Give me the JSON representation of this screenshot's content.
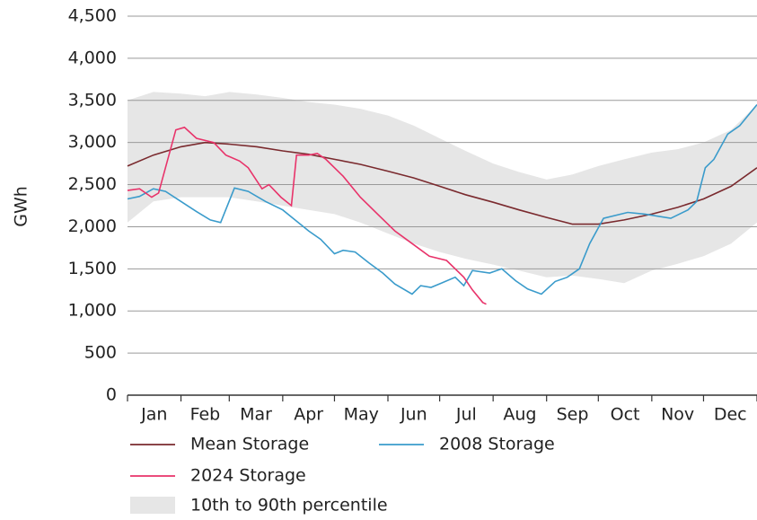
{
  "chart_data": {
    "type": "line",
    "y_label": "GWh",
    "categories": [
      "Jan",
      "Feb",
      "Mar",
      "Apr",
      "May",
      "Jun",
      "Jul",
      "Aug",
      "Sep",
      "Oct",
      "Nov",
      "Dec"
    ],
    "xlim": [
      0,
      365
    ],
    "xticks": [
      0,
      31,
      59,
      90,
      120,
      151,
      181,
      212,
      243,
      273,
      304,
      334,
      365
    ],
    "ylim": [
      0,
      4500
    ],
    "yticks": [
      0,
      {
        "value": 500,
        "label": "500"
      },
      {
        "value": 1000,
        "label": "1,000"
      },
      {
        "value": 1500,
        "label": "1,500"
      },
      {
        "value": 2000,
        "label": "2,000"
      },
      {
        "value": 2500,
        "label": "2,500"
      },
      {
        "value": 3000,
        "label": "3,000"
      },
      {
        "value": 3500,
        "label": "3,500"
      },
      {
        "value": 4000,
        "label": "4,000"
      },
      {
        "value": 4500,
        "label": "4,500"
      }
    ],
    "grid": true,
    "band": {
      "name": "10th to 90th percentile",
      "color": "#e6e6e6",
      "x": [
        0,
        15,
        31,
        45,
        59,
        75,
        90,
        105,
        120,
        135,
        151,
        166,
        181,
        196,
        212,
        227,
        243,
        258,
        273,
        288,
        304,
        319,
        334,
        350,
        365
      ],
      "upper": [
        3500,
        3600,
        3580,
        3550,
        3600,
        3570,
        3530,
        3480,
        3450,
        3400,
        3320,
        3200,
        3050,
        2900,
        2750,
        2650,
        2560,
        2620,
        2720,
        2800,
        2880,
        2920,
        3000,
        3150,
        3450
      ],
      "lower": [
        2050,
        2300,
        2350,
        2350,
        2350,
        2300,
        2250,
        2200,
        2150,
        2050,
        1920,
        1800,
        1700,
        1620,
        1550,
        1480,
        1400,
        1420,
        1380,
        1330,
        1480,
        1560,
        1650,
        1800,
        2050
      ]
    },
    "series": [
      {
        "name": "Mean Storage",
        "color": "#7a2a2e",
        "x": [
          0,
          15,
          31,
          45,
          59,
          75,
          90,
          105,
          120,
          135,
          151,
          166,
          181,
          196,
          212,
          227,
          243,
          258,
          273,
          288,
          304,
          319,
          334,
          350,
          365
        ],
        "values": [
          2720,
          2850,
          2950,
          3000,
          2980,
          2950,
          2900,
          2860,
          2800,
          2740,
          2660,
          2580,
          2480,
          2380,
          2290,
          2200,
          2110,
          2030,
          2030,
          2080,
          2150,
          2230,
          2330,
          2480,
          2700
        ]
      },
      {
        "name": "2008 Storage",
        "color": "#3a9bcb",
        "x": [
          0,
          7,
          15,
          22,
          31,
          40,
          48,
          54,
          62,
          70,
          80,
          90,
          96,
          105,
          112,
          120,
          125,
          132,
          140,
          148,
          155,
          165,
          170,
          176,
          182,
          190,
          195,
          200,
          210,
          217,
          225,
          232,
          240,
          248,
          255,
          262,
          268,
          276,
          290,
          300,
          315,
          325,
          330,
          335,
          340,
          348,
          355,
          365
        ],
        "values": [
          2330,
          2360,
          2450,
          2420,
          2300,
          2180,
          2080,
          2050,
          2460,
          2420,
          2300,
          2200,
          2100,
          1950,
          1850,
          1680,
          1720,
          1700,
          1570,
          1450,
          1320,
          1200,
          1300,
          1280,
          1330,
          1400,
          1300,
          1480,
          1450,
          1500,
          1360,
          1260,
          1200,
          1350,
          1400,
          1500,
          1800,
          2100,
          2170,
          2150,
          2100,
          2200,
          2300,
          2700,
          2800,
          3100,
          3200,
          3450
        ]
      },
      {
        "name": "2024 Storage",
        "color": "#e8336a",
        "x": [
          0,
          7,
          14,
          18,
          28,
          33,
          40,
          50,
          57,
          65,
          70,
          78,
          82,
          89,
          95,
          98,
          105,
          110,
          115,
          125,
          135,
          145,
          155,
          165,
          175,
          185,
          195,
          200,
          206,
          208
        ],
        "values": [
          2430,
          2450,
          2350,
          2400,
          3150,
          3180,
          3050,
          3000,
          2850,
          2780,
          2700,
          2450,
          2500,
          2350,
          2250,
          2850,
          2850,
          2870,
          2800,
          2600,
          2350,
          2150,
          1950,
          1800,
          1650,
          1600,
          1400,
          1250,
          1100,
          1080
        ]
      }
    ]
  }
}
